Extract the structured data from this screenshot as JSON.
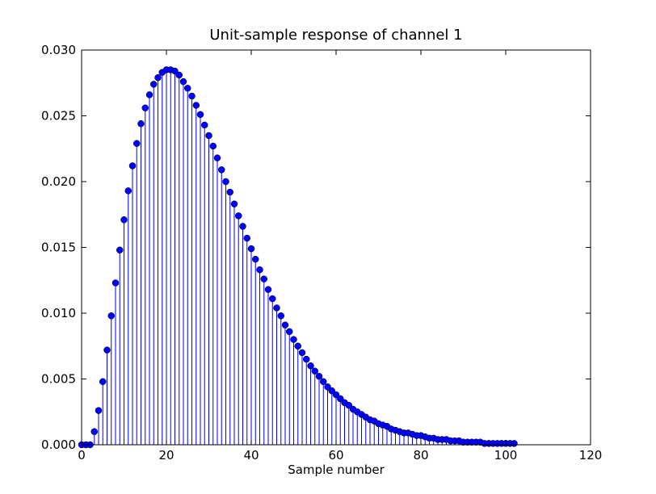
{
  "chart_data": {
    "type": "stem",
    "title": "Unit-sample response of channel 1",
    "xlabel": "Sample number",
    "ylabel": "",
    "xlim": [
      0,
      120
    ],
    "ylim": [
      0,
      0.03
    ],
    "xticks": [
      "0",
      "20",
      "40",
      "60",
      "80",
      "100",
      "120"
    ],
    "yticks": [
      "0.000",
      "0.005",
      "0.010",
      "0.015",
      "0.020",
      "0.025",
      "0.030"
    ],
    "grid": false,
    "legend": "none",
    "colors": {
      "marker": "#0000ff",
      "stem": "#0000ff",
      "baseline": "#ff0000"
    },
    "series": [
      {
        "x": [
          0,
          1,
          2,
          3,
          4,
          5,
          6,
          7,
          8,
          9,
          10,
          11,
          12,
          13,
          14,
          15,
          16,
          17,
          18,
          19,
          20,
          21,
          22,
          23,
          24,
          25,
          26,
          27,
          28,
          29,
          30,
          31,
          32,
          33,
          34,
          35,
          36,
          37,
          38,
          39,
          40,
          41,
          42,
          43,
          44,
          45,
          46,
          47,
          48,
          49,
          50,
          51,
          52,
          53,
          54,
          55,
          56,
          57,
          58,
          59,
          60,
          61,
          62,
          63,
          64,
          65,
          66,
          67,
          68,
          69,
          70,
          71,
          72,
          73,
          74,
          75,
          76,
          77,
          78,
          79,
          80,
          81,
          82,
          83,
          84,
          85,
          86,
          87,
          88,
          89,
          90,
          91,
          92,
          93,
          94,
          95,
          96,
          97,
          98,
          99,
          100,
          101,
          102
        ],
        "y": [
          0.0,
          0.0,
          0.0,
          0.001,
          0.0026,
          0.0048,
          0.0072,
          0.0098,
          0.0123,
          0.0148,
          0.0171,
          0.0193,
          0.0212,
          0.0229,
          0.0244,
          0.0256,
          0.0266,
          0.0274,
          0.0279,
          0.0283,
          0.0285,
          0.0285,
          0.0284,
          0.0281,
          0.0276,
          0.0271,
          0.0265,
          0.0258,
          0.0251,
          0.0243,
          0.0235,
          0.0227,
          0.0218,
          0.0209,
          0.02,
          0.0192,
          0.0183,
          0.0174,
          0.0166,
          0.0157,
          0.0149,
          0.0141,
          0.0133,
          0.0126,
          0.0118,
          0.0111,
          0.0104,
          0.0098,
          0.0091,
          0.0086,
          0.008,
          0.0075,
          0.007,
          0.0065,
          0.006,
          0.0056,
          0.0052,
          0.0048,
          0.0044,
          0.0041,
          0.0038,
          0.0035,
          0.0032,
          0.003,
          0.0027,
          0.0025,
          0.0023,
          0.0021,
          0.0019,
          0.0018,
          0.0016,
          0.0015,
          0.0014,
          0.0012,
          0.0011,
          0.001,
          0.0009,
          0.0009,
          0.0008,
          0.0007,
          0.0007,
          0.0006,
          0.0005,
          0.0005,
          0.0004,
          0.0004,
          0.0004,
          0.0003,
          0.0003,
          0.0003,
          0.0002,
          0.0002,
          0.0002,
          0.0002,
          0.0002,
          0.0001,
          0.0001,
          0.0001,
          0.0001,
          0.0001,
          0.0001,
          0.0001,
          0.0001
        ]
      }
    ]
  }
}
